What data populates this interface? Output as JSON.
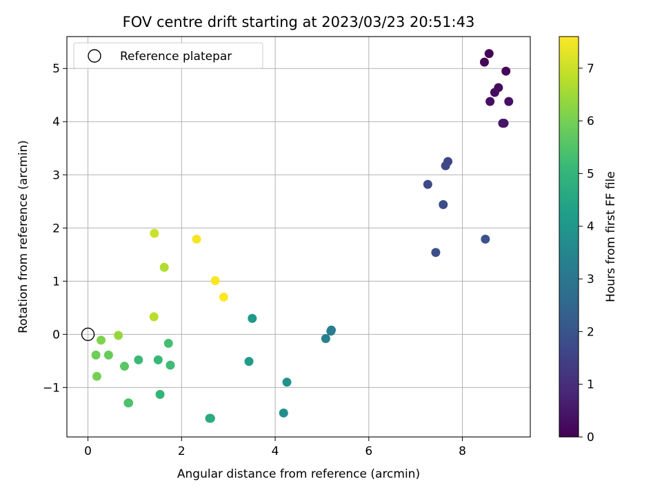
{
  "chart_data": {
    "type": "scatter",
    "title": "FOV centre drift starting at 2023/03/23 20:51:43",
    "xlabel": "Angular distance from reference (arcmin)",
    "ylabel": "Rotation from reference (arcmin)",
    "xlim": [
      -0.45,
      9.45
    ],
    "ylim": [
      -1.93,
      5.6
    ],
    "xticks": [
      0,
      2,
      4,
      6,
      8
    ],
    "xtick_labels": [
      "0",
      "2",
      "4",
      "6",
      "8"
    ],
    "yticks": [
      -1,
      0,
      1,
      2,
      3,
      4,
      5
    ],
    "ytick_labels": [
      "−1",
      "0",
      "1",
      "2",
      "3",
      "4",
      "5"
    ],
    "grid": true,
    "legend": {
      "label": "Reference platepar",
      "placement": "top-left",
      "marker": "open-circle"
    },
    "reference_point": {
      "x": 0,
      "y": 0
    },
    "colorbar": {
      "label": "Hours from first FF file",
      "range": [
        0,
        7.6
      ],
      "ticks": [
        0,
        1,
        2,
        3,
        4,
        5,
        6,
        7
      ],
      "tick_labels": [
        "0",
        "1",
        "2",
        "3",
        "4",
        "5",
        "6",
        "7"
      ],
      "colormap": "viridis",
      "stops": [
        "#440154",
        "#482878",
        "#3e4989",
        "#31688e",
        "#26828e",
        "#1f9e89",
        "#35b779",
        "#6ece58",
        "#b5de2b",
        "#fde725"
      ]
    },
    "points": [
      {
        "x": 8.57,
        "y": 5.28,
        "hours": 0.05
      },
      {
        "x": 8.47,
        "y": 5.12,
        "hours": 0.1
      },
      {
        "x": 8.93,
        "y": 4.95,
        "hours": 0.15
      },
      {
        "x": 8.77,
        "y": 4.64,
        "hours": 0.2
      },
      {
        "x": 8.69,
        "y": 4.55,
        "hours": 0.25
      },
      {
        "x": 8.59,
        "y": 4.38,
        "hours": 0.3
      },
      {
        "x": 8.99,
        "y": 4.38,
        "hours": 0.35
      },
      {
        "x": 8.86,
        "y": 3.97,
        "hours": 0.4
      },
      {
        "x": 8.89,
        "y": 3.97,
        "hours": 0.45
      },
      {
        "x": 7.69,
        "y": 3.25,
        "hours": 1.6
      },
      {
        "x": 7.64,
        "y": 3.17,
        "hours": 1.65
      },
      {
        "x": 7.26,
        "y": 2.82,
        "hours": 1.7
      },
      {
        "x": 7.59,
        "y": 2.44,
        "hours": 1.75
      },
      {
        "x": 7.43,
        "y": 1.54,
        "hours": 1.85
      },
      {
        "x": 8.49,
        "y": 1.79,
        "hours": 1.95
      },
      {
        "x": 5.2,
        "y": 0.08,
        "hours": 3.2
      },
      {
        "x": 5.19,
        "y": 0.06,
        "hours": 3.25
      },
      {
        "x": 5.08,
        "y": -0.08,
        "hours": 3.3
      },
      {
        "x": 4.18,
        "y": -1.48,
        "hours": 3.7
      },
      {
        "x": 4.25,
        "y": -0.9,
        "hours": 3.9
      },
      {
        "x": 3.51,
        "y": 0.3,
        "hours": 4.05
      },
      {
        "x": 3.44,
        "y": -0.51,
        "hours": 4.15
      },
      {
        "x": 2.6,
        "y": -1.58,
        "hours": 4.6
      },
      {
        "x": 2.62,
        "y": -1.58,
        "hours": 4.65
      },
      {
        "x": 1.54,
        "y": -1.13,
        "hours": 5.0
      },
      {
        "x": 1.5,
        "y": -0.48,
        "hours": 5.1
      },
      {
        "x": 1.08,
        "y": -0.48,
        "hours": 5.15
      },
      {
        "x": 1.76,
        "y": -0.58,
        "hours": 5.2
      },
      {
        "x": 1.72,
        "y": -0.17,
        "hours": 5.3
      },
      {
        "x": 0.87,
        "y": -1.29,
        "hours": 5.4
      },
      {
        "x": 0.86,
        "y": -1.29,
        "hours": 5.45
      },
      {
        "x": 0.78,
        "y": -0.6,
        "hours": 5.6
      },
      {
        "x": 0.44,
        "y": -0.39,
        "hours": 5.8
      },
      {
        "x": 0.17,
        "y": -0.39,
        "hours": 5.9
      },
      {
        "x": 0.19,
        "y": -0.79,
        "hours": 6.0
      },
      {
        "x": 0.28,
        "y": -0.11,
        "hours": 6.1
      },
      {
        "x": 0.65,
        "y": -0.02,
        "hours": 6.4
      },
      {
        "x": 1.63,
        "y": 1.26,
        "hours": 6.7
      },
      {
        "x": 1.41,
        "y": 0.33,
        "hours": 6.8
      },
      {
        "x": 1.42,
        "y": 1.9,
        "hours": 7.0
      },
      {
        "x": 2.32,
        "y": 1.79,
        "hours": 7.5
      },
      {
        "x": 2.72,
        "y": 1.01,
        "hours": 7.55
      },
      {
        "x": 2.9,
        "y": 0.7,
        "hours": 7.6
      }
    ]
  }
}
